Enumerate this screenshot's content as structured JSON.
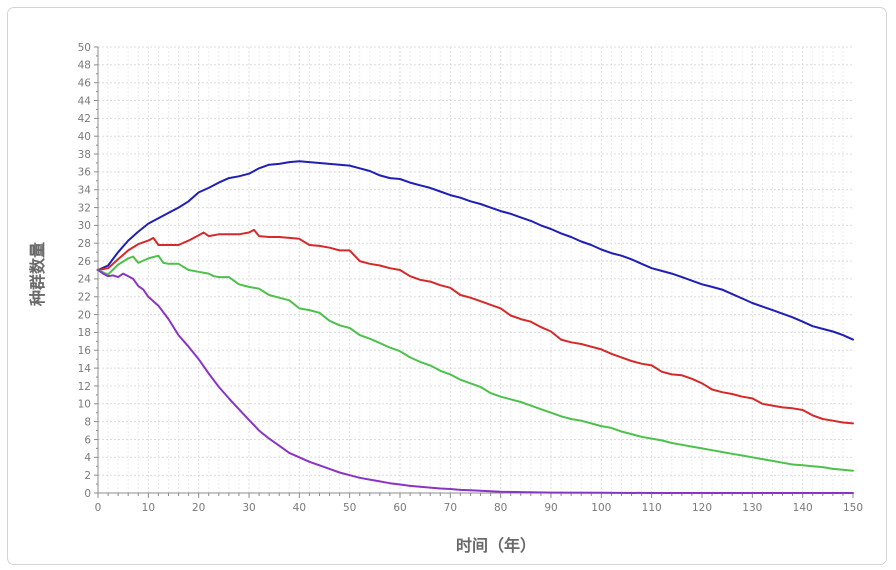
{
  "chart_data": {
    "type": "line",
    "title": "",
    "xlabel": "时间（年）",
    "ylabel": "种群数量",
    "xlim": [
      0,
      150
    ],
    "ylim": [
      0,
      50
    ],
    "x_ticks": [
      0,
      10,
      20,
      30,
      40,
      50,
      60,
      70,
      80,
      90,
      100,
      110,
      120,
      130,
      140,
      150
    ],
    "y_ticks": [
      0,
      2,
      4,
      6,
      8,
      10,
      12,
      14,
      16,
      18,
      20,
      22,
      24,
      26,
      28,
      30,
      32,
      34,
      36,
      38,
      40,
      42,
      44,
      46,
      48,
      50
    ],
    "grid": true,
    "legend": "none",
    "series": [
      {
        "color": "#1f1fb4",
        "points": [
          [
            0,
            25
          ],
          [
            2,
            25.5
          ],
          [
            4,
            27
          ],
          [
            6,
            28.3
          ],
          [
            8,
            29.3
          ],
          [
            10,
            30.2
          ],
          [
            12,
            30.8
          ],
          [
            14,
            31.4
          ],
          [
            16,
            32
          ],
          [
            18,
            32.7
          ],
          [
            20,
            33.7
          ],
          [
            22,
            34.2
          ],
          [
            24,
            34.8
          ],
          [
            26,
            35.3
          ],
          [
            28,
            35.5
          ],
          [
            30,
            35.8
          ],
          [
            32,
            36.4
          ],
          [
            34,
            36.8
          ],
          [
            36,
            36.9
          ],
          [
            38,
            37.1
          ],
          [
            40,
            37.2
          ],
          [
            42,
            37.1
          ],
          [
            44,
            37
          ],
          [
            46,
            36.9
          ],
          [
            48,
            36.8
          ],
          [
            50,
            36.7
          ],
          [
            52,
            36.4
          ],
          [
            54,
            36.1
          ],
          [
            56,
            35.6
          ],
          [
            58,
            35.3
          ],
          [
            60,
            35.2
          ],
          [
            62,
            34.8
          ],
          [
            64,
            34.5
          ],
          [
            66,
            34.2
          ],
          [
            68,
            33.8
          ],
          [
            70,
            33.4
          ],
          [
            72,
            33.1
          ],
          [
            74,
            32.7
          ],
          [
            76,
            32.4
          ],
          [
            78,
            32
          ],
          [
            80,
            31.6
          ],
          [
            82,
            31.3
          ],
          [
            84,
            30.9
          ],
          [
            86,
            30.5
          ],
          [
            88,
            30
          ],
          [
            90,
            29.6
          ],
          [
            92,
            29.1
          ],
          [
            94,
            28.7
          ],
          [
            96,
            28.2
          ],
          [
            98,
            27.8
          ],
          [
            100,
            27.3
          ],
          [
            102,
            26.9
          ],
          [
            104,
            26.6
          ],
          [
            106,
            26.2
          ],
          [
            108,
            25.7
          ],
          [
            110,
            25.2
          ],
          [
            112,
            24.9
          ],
          [
            114,
            24.6
          ],
          [
            116,
            24.2
          ],
          [
            118,
            23.8
          ],
          [
            120,
            23.4
          ],
          [
            122,
            23.1
          ],
          [
            124,
            22.8
          ],
          [
            126,
            22.3
          ],
          [
            128,
            21.8
          ],
          [
            130,
            21.3
          ],
          [
            132,
            20.9
          ],
          [
            134,
            20.5
          ],
          [
            136,
            20.1
          ],
          [
            138,
            19.7
          ],
          [
            140,
            19.2
          ],
          [
            142,
            18.7
          ],
          [
            144,
            18.4
          ],
          [
            146,
            18.1
          ],
          [
            148,
            17.7
          ],
          [
            150,
            17.2
          ]
        ]
      },
      {
        "color": "#d42a2a",
        "points": [
          [
            0,
            25
          ],
          [
            2,
            25.2
          ],
          [
            4,
            26.2
          ],
          [
            6,
            27.2
          ],
          [
            8,
            27.9
          ],
          [
            10,
            28.3
          ],
          [
            11,
            28.6
          ],
          [
            12,
            27.8
          ],
          [
            14,
            27.8
          ],
          [
            16,
            27.8
          ],
          [
            18,
            28.3
          ],
          [
            20,
            28.9
          ],
          [
            21,
            29.2
          ],
          [
            22,
            28.8
          ],
          [
            24,
            29
          ],
          [
            26,
            29
          ],
          [
            28,
            29
          ],
          [
            30,
            29.2
          ],
          [
            31,
            29.5
          ],
          [
            32,
            28.8
          ],
          [
            34,
            28.7
          ],
          [
            36,
            28.7
          ],
          [
            38,
            28.6
          ],
          [
            40,
            28.5
          ],
          [
            42,
            27.8
          ],
          [
            44,
            27.7
          ],
          [
            46,
            27.5
          ],
          [
            48,
            27.2
          ],
          [
            50,
            27.2
          ],
          [
            52,
            26
          ],
          [
            54,
            25.7
          ],
          [
            56,
            25.5
          ],
          [
            58,
            25.2
          ],
          [
            60,
            25
          ],
          [
            62,
            24.3
          ],
          [
            64,
            23.9
          ],
          [
            66,
            23.7
          ],
          [
            68,
            23.3
          ],
          [
            70,
            23
          ],
          [
            72,
            22.2
          ],
          [
            74,
            21.9
          ],
          [
            76,
            21.5
          ],
          [
            78,
            21.1
          ],
          [
            80,
            20.7
          ],
          [
            82,
            19.9
          ],
          [
            84,
            19.5
          ],
          [
            86,
            19.2
          ],
          [
            88,
            18.6
          ],
          [
            90,
            18.1
          ],
          [
            92,
            17.2
          ],
          [
            94,
            16.9
          ],
          [
            96,
            16.7
          ],
          [
            98,
            16.4
          ],
          [
            100,
            16.1
          ],
          [
            102,
            15.6
          ],
          [
            104,
            15.2
          ],
          [
            106,
            14.8
          ],
          [
            108,
            14.5
          ],
          [
            110,
            14.3
          ],
          [
            112,
            13.6
          ],
          [
            114,
            13.3
          ],
          [
            116,
            13.2
          ],
          [
            118,
            12.8
          ],
          [
            120,
            12.3
          ],
          [
            122,
            11.6
          ],
          [
            124,
            11.3
          ],
          [
            126,
            11.1
          ],
          [
            128,
            10.8
          ],
          [
            130,
            10.6
          ],
          [
            132,
            10
          ],
          [
            134,
            9.8
          ],
          [
            136,
            9.6
          ],
          [
            138,
            9.5
          ],
          [
            140,
            9.3
          ],
          [
            142,
            8.7
          ],
          [
            144,
            8.3
          ],
          [
            146,
            8.1
          ],
          [
            148,
            7.9
          ],
          [
            150,
            7.8
          ]
        ]
      },
      {
        "color": "#4cc24c",
        "points": [
          [
            0,
            25
          ],
          [
            2,
            24.5
          ],
          [
            4,
            25.6
          ],
          [
            6,
            26.3
          ],
          [
            7,
            26.5
          ],
          [
            8,
            25.8
          ],
          [
            10,
            26.3
          ],
          [
            12,
            26.6
          ],
          [
            13,
            25.8
          ],
          [
            14,
            25.7
          ],
          [
            16,
            25.7
          ],
          [
            18,
            25
          ],
          [
            20,
            24.8
          ],
          [
            22,
            24.6
          ],
          [
            23,
            24.3
          ],
          [
            24,
            24.2
          ],
          [
            26,
            24.2
          ],
          [
            28,
            23.4
          ],
          [
            30,
            23.1
          ],
          [
            32,
            22.9
          ],
          [
            34,
            22.2
          ],
          [
            36,
            21.9
          ],
          [
            38,
            21.6
          ],
          [
            40,
            20.7
          ],
          [
            42,
            20.5
          ],
          [
            44,
            20.2
          ],
          [
            46,
            19.3
          ],
          [
            48,
            18.8
          ],
          [
            50,
            18.5
          ],
          [
            52,
            17.7
          ],
          [
            54,
            17.3
          ],
          [
            56,
            16.8
          ],
          [
            58,
            16.3
          ],
          [
            60,
            15.9
          ],
          [
            62,
            15.2
          ],
          [
            64,
            14.7
          ],
          [
            66,
            14.3
          ],
          [
            68,
            13.7
          ],
          [
            70,
            13.3
          ],
          [
            72,
            12.7
          ],
          [
            74,
            12.3
          ],
          [
            76,
            11.9
          ],
          [
            78,
            11.2
          ],
          [
            80,
            10.8
          ],
          [
            82,
            10.5
          ],
          [
            84,
            10.2
          ],
          [
            86,
            9.8
          ],
          [
            88,
            9.4
          ],
          [
            90,
            9
          ],
          [
            92,
            8.6
          ],
          [
            94,
            8.3
          ],
          [
            96,
            8.1
          ],
          [
            98,
            7.8
          ],
          [
            100,
            7.5
          ],
          [
            102,
            7.3
          ],
          [
            104,
            6.9
          ],
          [
            106,
            6.6
          ],
          [
            108,
            6.3
          ],
          [
            110,
            6.1
          ],
          [
            112,
            5.9
          ],
          [
            114,
            5.6
          ],
          [
            116,
            5.4
          ],
          [
            118,
            5.2
          ],
          [
            120,
            5
          ],
          [
            122,
            4.8
          ],
          [
            124,
            4.6
          ],
          [
            126,
            4.4
          ],
          [
            128,
            4.2
          ],
          [
            130,
            4
          ],
          [
            132,
            3.8
          ],
          [
            134,
            3.6
          ],
          [
            136,
            3.4
          ],
          [
            138,
            3.2
          ],
          [
            140,
            3.1
          ],
          [
            142,
            3
          ],
          [
            144,
            2.9
          ],
          [
            146,
            2.7
          ],
          [
            148,
            2.6
          ],
          [
            150,
            2.5
          ]
        ]
      },
      {
        "color": "#8a35c2",
        "points": [
          [
            0,
            25
          ],
          [
            1,
            24.6
          ],
          [
            2,
            24.3
          ],
          [
            3,
            24.4
          ],
          [
            4,
            24.2
          ],
          [
            5,
            24.6
          ],
          [
            6,
            24.3
          ],
          [
            7,
            24
          ],
          [
            8,
            23.2
          ],
          [
            9,
            22.8
          ],
          [
            10,
            22
          ],
          [
            12,
            21
          ],
          [
            14,
            19.5
          ],
          [
            16,
            17.7
          ],
          [
            18,
            16.4
          ],
          [
            20,
            15
          ],
          [
            22,
            13.4
          ],
          [
            24,
            11.9
          ],
          [
            26,
            10.6
          ],
          [
            28,
            9.4
          ],
          [
            30,
            8.2
          ],
          [
            32,
            7
          ],
          [
            34,
            6.1
          ],
          [
            36,
            5.3
          ],
          [
            38,
            4.5
          ],
          [
            40,
            4
          ],
          [
            42,
            3.5
          ],
          [
            44,
            3.1
          ],
          [
            46,
            2.7
          ],
          [
            48,
            2.3
          ],
          [
            50,
            2
          ],
          [
            52,
            1.7
          ],
          [
            54,
            1.5
          ],
          [
            56,
            1.3
          ],
          [
            58,
            1.1
          ],
          [
            60,
            0.95
          ],
          [
            62,
            0.8
          ],
          [
            64,
            0.7
          ],
          [
            66,
            0.6
          ],
          [
            68,
            0.5
          ],
          [
            70,
            0.45
          ],
          [
            72,
            0.35
          ],
          [
            74,
            0.3
          ],
          [
            76,
            0.25
          ],
          [
            78,
            0.2
          ],
          [
            80,
            0.15
          ],
          [
            84,
            0.1
          ],
          [
            90,
            0.05
          ],
          [
            100,
            0.02
          ],
          [
            110,
            0
          ],
          [
            150,
            0
          ]
        ]
      }
    ]
  }
}
